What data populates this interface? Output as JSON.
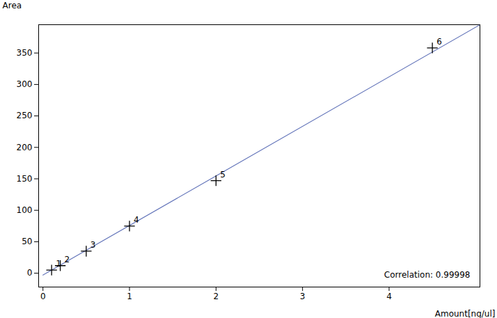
{
  "chart_data": {
    "type": "scatter",
    "xlabel": "Amount[ng/ul]",
    "ylabel": "Area",
    "annotation": "Correlation: 0.99998",
    "xlim": [
      -0.05,
      5.05
    ],
    "ylim": [
      -22,
      395
    ],
    "xticks": [
      0,
      1,
      2,
      3,
      4
    ],
    "yticks": [
      0,
      50,
      100,
      150,
      200,
      250,
      300,
      350
    ],
    "grid": false,
    "series": [
      {
        "type": "line",
        "color": "#6677bb",
        "line_style": "solid",
        "x": [
          0.0,
          5.05
        ],
        "values": [
          -3.0,
          394.94
        ]
      },
      {
        "type": "scatter",
        "color": "black",
        "marker": "plus",
        "x": [
          0.1,
          0.2,
          0.5,
          1.0,
          2.0,
          4.5
        ],
        "values": [
          5,
          12,
          35,
          75,
          147,
          358
        ],
        "labels": [
          "1",
          "2",
          "3",
          "4",
          "5",
          "6"
        ]
      }
    ]
  }
}
